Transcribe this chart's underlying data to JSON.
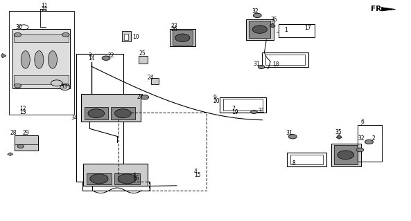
{
  "bg_color": "#ffffff",
  "fig_width": 5.93,
  "fig_height": 3.2,
  "dpi": 100,
  "line_color": "#000000",
  "lw": 0.8
}
